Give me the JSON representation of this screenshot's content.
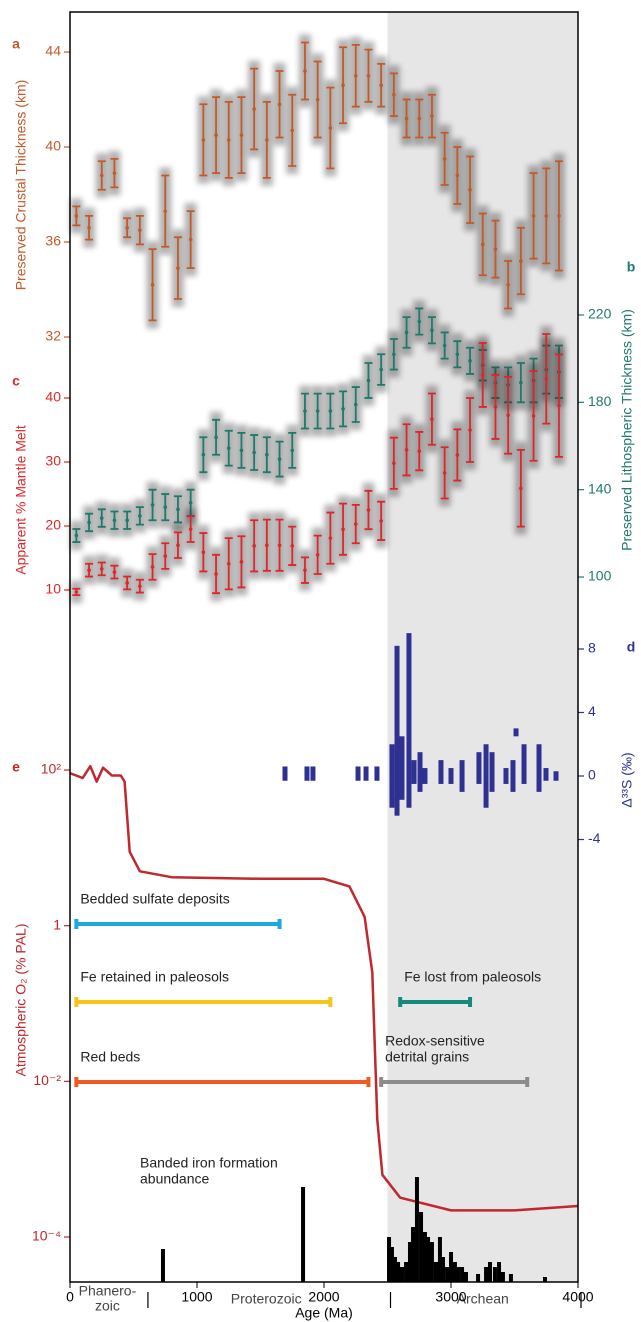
{
  "chart_data": [
    {
      "type": "errorbar",
      "label": "a",
      "ylabel": "Preserved Crustal Thickness (km)",
      "color": "#c55a28",
      "side": "left",
      "x": [
        50,
        150,
        250,
        350,
        450,
        550,
        650,
        750,
        850,
        950,
        1050,
        1150,
        1250,
        1350,
        1450,
        1550,
        1650,
        1750,
        1850,
        1950,
        2050,
        2150,
        2250,
        2350,
        2450,
        2550,
        2650,
        2750,
        2850,
        2950,
        3050,
        3150,
        3250,
        3350,
        3450,
        3550,
        3650,
        3750,
        3850
      ],
      "values": [
        37.1,
        36.6,
        38.8,
        38.9,
        36.6,
        36.5,
        34.2,
        37.3,
        34.9,
        36.1,
        40.3,
        40.5,
        40.3,
        40.5,
        41.6,
        40.3,
        41.8,
        40.7,
        43.2,
        42.0,
        40.8,
        42.6,
        43.0,
        43.0,
        42.6,
        42.2,
        41.2,
        41.2,
        41.3,
        39.5,
        38.8,
        38.2,
        35.9,
        35.7,
        34.2,
        35.2,
        37.1,
        37.1,
        37.1
      ],
      "errors": [
        0.4,
        0.5,
        0.6,
        0.6,
        0.4,
        0.6,
        1.5,
        1.5,
        1.3,
        1.2,
        1.5,
        1.6,
        1.6,
        1.6,
        1.7,
        1.6,
        1.4,
        1.5,
        1.2,
        1.6,
        1.7,
        1.6,
        1.3,
        1.1,
        0.9,
        0.9,
        0.8,
        0.8,
        0.9,
        1.1,
        1.2,
        1.4,
        1.3,
        1.2,
        1.0,
        1.4,
        1.8,
        2.0,
        2.3
      ],
      "ylim": [
        31.5,
        45.5
      ],
      "yticks": [
        44,
        40,
        36,
        32
      ]
    },
    {
      "type": "errorbar",
      "label": "b",
      "ylabel": "Preserved Lithospheric Thickness (km)",
      "color": "#1f7a6e",
      "side": "right",
      "x": [
        50,
        150,
        250,
        350,
        450,
        550,
        650,
        750,
        850,
        950,
        1050,
        1150,
        1250,
        1350,
        1450,
        1550,
        1650,
        1750,
        1850,
        1950,
        2050,
        2150,
        2250,
        2350,
        2450,
        2550,
        2650,
        2750,
        2850,
        2950,
        3050,
        3150,
        3250,
        3350,
        3450,
        3550,
        3650,
        3750,
        3850
      ],
      "values": [
        119,
        125,
        127,
        126,
        126,
        128,
        133,
        132,
        131,
        134,
        156,
        164,
        159,
        158,
        157,
        156,
        154,
        158,
        176,
        176,
        176,
        177,
        179,
        190,
        195,
        202,
        212,
        217,
        213,
        206,
        202,
        199,
        197,
        189,
        188,
        189,
        190,
        195,
        194
      ],
      "errors": [
        3,
        4,
        4,
        4,
        4,
        4,
        7,
        6,
        6,
        6,
        8,
        8,
        8,
        8,
        8,
        8,
        8,
        8,
        8,
        8,
        8,
        8,
        8,
        8,
        7,
        7,
        7,
        6,
        6,
        6,
        6,
        6,
        7,
        7,
        8,
        9,
        10,
        11,
        12
      ],
      "ylim": [
        80,
        240
      ],
      "yticks": [
        220,
        180,
        140,
        100
      ]
    },
    {
      "type": "errorbar",
      "label": "c",
      "ylabel": "Apparent  % Mantle Melt",
      "color": "#e0262a",
      "side": "left",
      "x": [
        50,
        150,
        250,
        350,
        450,
        550,
        650,
        750,
        850,
        950,
        1050,
        1150,
        1250,
        1350,
        1450,
        1550,
        1650,
        1750,
        1850,
        1950,
        2050,
        2150,
        2250,
        2350,
        2450,
        2550,
        2650,
        2750,
        2850,
        2950,
        3050,
        3150,
        3250,
        3350,
        3450,
        3550,
        3650,
        3750,
        3850
      ],
      "values": [
        9.7,
        13.1,
        13.3,
        12.8,
        11.1,
        10.6,
        13.6,
        15.3,
        17.0,
        19.5,
        15.9,
        12.5,
        14.1,
        14.4,
        16.9,
        17.0,
        17.0,
        16.9,
        13.1,
        15.5,
        18.1,
        19.5,
        20.3,
        22.5,
        20.8,
        29.8,
        31.9,
        31.7,
        36.7,
        28.3,
        31.1,
        35.0,
        43.6,
        38.6,
        37.3,
        25.9,
        37.2,
        43.0,
        38.8
      ],
      "errors": [
        0.5,
        1,
        1,
        1,
        1,
        1,
        2,
        2,
        2,
        2,
        3,
        3,
        4,
        4,
        4,
        4,
        4,
        3,
        2,
        3,
        4,
        4,
        3,
        3,
        3,
        4,
        4,
        3,
        4,
        4,
        4,
        5,
        5,
        5,
        6,
        6,
        7,
        7,
        8
      ],
      "ylim": [
        5,
        45
      ],
      "yticks": [
        40,
        30,
        20,
        10
      ]
    },
    {
      "type": "range_bar",
      "label": "d",
      "ylabel": "Δ³³S (‰)",
      "color": "#2e3192",
      "side": "right",
      "x": [
        1693,
        1866,
        1913,
        2268,
        2331,
        2417,
        2535,
        2575,
        2614,
        2669,
        2709,
        2756,
        2795,
        2921,
        3000,
        3087,
        3220,
        3276,
        3323,
        3433,
        3488,
        3512,
        3575,
        3693,
        3748,
        3827
      ],
      "low": [
        -0.3,
        -0.3,
        -0.3,
        -0.3,
        -0.3,
        -0.3,
        -2.0,
        -2.5,
        -1.5,
        -2.0,
        -0.5,
        -1.0,
        -0.5,
        -0.5,
        -0.5,
        -1.0,
        -0.5,
        -2.0,
        -1.0,
        -0.5,
        -1.0,
        2.5,
        -0.5,
        -1.0,
        -0.3,
        -0.3
      ],
      "high": [
        0.6,
        0.6,
        0.6,
        0.6,
        0.6,
        0.6,
        2.0,
        8.2,
        2.5,
        9.0,
        1.0,
        1.5,
        0.5,
        1.0,
        0.5,
        1.0,
        1.5,
        2.0,
        1.5,
        0.5,
        1.0,
        3.0,
        2.0,
        2.0,
        0.5,
        0.3
      ],
      "ylim": [
        -6,
        10
      ],
      "yticks": [
        8,
        4,
        0,
        -4
      ]
    },
    {
      "type": "line",
      "label": "e",
      "ylabel": "Atmospheric O₂ (% PAL)",
      "color": "#c1272d",
      "side": "left",
      "log_scale": true,
      "x": [
        0,
        100,
        160,
        210,
        260,
        330,
        400,
        430,
        470,
        550,
        800,
        1500,
        2000,
        2200,
        2320,
        2380,
        2420,
        2460,
        2600,
        3000,
        3500,
        4000
      ],
      "values": [
        91,
        79,
        112,
        71,
        107,
        85,
        85,
        71,
        8.9,
        5,
        4.2,
        4,
        4,
        3.2,
        1.3,
        0.25,
        0.0032,
        0.00063,
        0.00032,
        0.00022,
        0.00022,
        0.00025
      ],
      "ylim": [
        3e-05,
        300
      ],
      "yticks": [
        {
          "value": 100,
          "label": "10²"
        },
        1,
        {
          "value": 0.01,
          "label": "10⁻²"
        },
        {
          "value": 0.0001,
          "label": "10⁻⁴"
        }
      ],
      "ranges": [
        {
          "label": [
            "Bedded sulfate deposits"
          ],
          "start": 50,
          "end": 1650,
          "color": "#1ba9e0"
        },
        {
          "label": [
            "Fe retained in paleosols"
          ],
          "start": 50,
          "end": 2050,
          "color": "#f5c518"
        },
        {
          "label": [
            "Red beds"
          ],
          "start": 50,
          "end": 2350,
          "color": "#f15a24"
        },
        {
          "label": [
            "Fe lost from paleosols"
          ],
          "start": 2600,
          "end": 3150,
          "color": "#138a7a"
        },
        {
          "label": [
            "Redox-sensitive",
            "detrital grains"
          ],
          "start": 2450,
          "end": 3600,
          "color": "#8c8c8c"
        }
      ]
    },
    {
      "type": "bar",
      "title": [
        "Banded iron formation",
        "abundance"
      ],
      "color": "#000000",
      "x": [
        732,
        1835,
        2512,
        2535,
        2559,
        2583,
        2614,
        2646,
        2677,
        2701,
        2732,
        2764,
        2795,
        2819,
        2850,
        2882,
        2913,
        2937,
        2969,
        3000,
        3031,
        3055,
        3087,
        3118,
        3213,
        3276,
        3307,
        3346,
        3378,
        3409,
        3472,
        3740
      ],
      "values": [
        33,
        95,
        45,
        35,
        25,
        20,
        15,
        20,
        40,
        55,
        105,
        70,
        50,
        45,
        40,
        20,
        45,
        25,
        15,
        30,
        20,
        15,
        15,
        10,
        8,
        15,
        20,
        15,
        20,
        10,
        8,
        5
      ],
      "ylim": [
        0,
        110
      ],
      "xlim": [
        0,
        4000
      ],
      "xticks": [
        0,
        1000,
        2000,
        3000,
        4000
      ],
      "xlabel": "Age (Ma)",
      "eras": [
        {
          "label": [
            "Phanero-",
            "zoic"
          ],
          "end": 590
        },
        {
          "label": [
            "Proterozoic"
          ],
          "end": 2500
        },
        {
          "label": [
            "Archean"
          ],
          "end": 4000,
          "shaded": true
        }
      ]
    }
  ]
}
